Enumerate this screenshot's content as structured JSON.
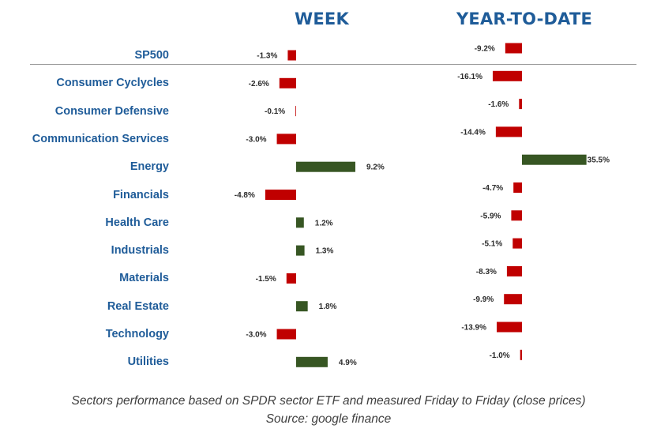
{
  "headers": {
    "week": "WEEK",
    "ytd": "YEAR-TO-DATE"
  },
  "footer": {
    "line1": "Sectors performance based on SPDR sector ETF and measured Friday to Friday (close prices)",
    "line2": "Source: google finance"
  },
  "colors": {
    "positive": "#375623",
    "negative": "#c00000",
    "label": "#1f5c99"
  },
  "chart_data": [
    {
      "type": "bar",
      "orientation": "horizontal",
      "title": "WEEK",
      "categories": [
        "SP500",
        "Consumer Cyclycles",
        "Consumer Defensive",
        "Communication Services",
        "Energy",
        "Financials",
        "Health Care",
        "Industrials",
        "Materials",
        "Real Estate",
        "Technology",
        "Utilities"
      ],
      "values": [
        -1.3,
        -2.6,
        -0.1,
        -3.0,
        9.2,
        -4.8,
        1.2,
        1.3,
        -1.5,
        1.8,
        -3.0,
        4.9
      ],
      "value_labels": [
        "-1.3%",
        "-2.6%",
        "-0.1%",
        "-3.0%",
        "9.2%",
        "-4.8%",
        "1.2%",
        "1.3%",
        "-1.5%",
        "1.8%",
        "-3.0%",
        "4.9%"
      ],
      "unit": "%"
    },
    {
      "type": "bar",
      "orientation": "horizontal",
      "title": "YEAR-TO-DATE",
      "categories": [
        "SP500",
        "Consumer Cyclycles",
        "Consumer Defensive",
        "Communication Services",
        "Energy",
        "Financials",
        "Health Care",
        "Industrials",
        "Materials",
        "Real Estate",
        "Technology",
        "Utilities"
      ],
      "values": [
        -9.2,
        -16.1,
        -1.6,
        -14.4,
        35.5,
        -4.7,
        -5.9,
        -5.1,
        -8.3,
        -9.9,
        -13.9,
        -1.0
      ],
      "value_labels": [
        "-9.2%",
        "-16.1%",
        "-1.6%",
        "-14.4%",
        "35.5%",
        "-4.7%",
        "-5.9%",
        "-5.1%",
        "-8.3%",
        "-9.9%",
        "-13.9%",
        "-1.0%"
      ],
      "unit": "%"
    }
  ]
}
